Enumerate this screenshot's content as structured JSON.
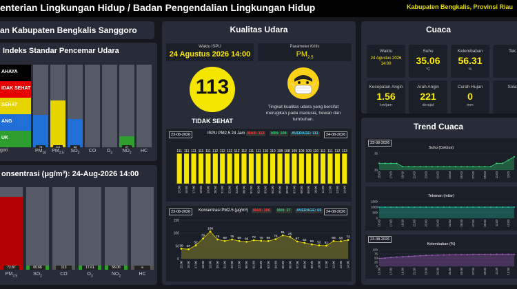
{
  "header": {
    "title": "enterian Lingkungan Hidup / Badan Pengendalian Lingkungan Hidup",
    "region": "Kabupaten Bengkalis, Provinsi Riau"
  },
  "station": {
    "title": "an Kabupaten Bengkalis Sanggoro"
  },
  "ispu_index": {
    "title": "Indeks Standar Pencemar Udara",
    "legend": [
      "AHAYA",
      "IDAK SEHAT",
      "SEHAT",
      "ANG",
      "UK"
    ],
    "legend_colors": [
      "#000000",
      "#e60000",
      "#e6d400",
      "#1f6fd6",
      "#2e9f2e"
    ],
    "category_label": "gori",
    "pollutants": [
      {
        "label": "PM",
        "sub": "10",
        "value": 78,
        "color": "#1f6fd6"
      },
      {
        "label": "PM",
        "sub": "2.5",
        "value": 113,
        "color": "#e6d400"
      },
      {
        "label": "SO",
        "sub": "2",
        "value": 68,
        "color": "#1f6fd6"
      },
      {
        "label": "CO",
        "sub": "",
        "value": null,
        "color": "#555"
      },
      {
        "label": "O",
        "sub": "3",
        "value": null,
        "color": "#555"
      },
      {
        "label": "NO",
        "sub": "2",
        "value": 27,
        "color": "#2e9f2e"
      },
      {
        "label": "HC",
        "sub": "",
        "value": null,
        "color": "#555"
      }
    ],
    "bar_tags": [
      "78",
      "113",
      "68",
      "",
      "",
      "27",
      ""
    ]
  },
  "concentration": {
    "title": "onsentrasi (μg/m³): 24-Aug-2026 14:00",
    "bars": [
      {
        "label": "PM",
        "sub": "2.5",
        "tag": "72.87",
        "fill": 0.88,
        "color": "#b30000"
      },
      {
        "label": "SO",
        "sub": "2",
        "tag": "60.66",
        "fill": 0.04,
        "color": "#2e9f2e"
      },
      {
        "label": "CO",
        "sub": "",
        "tag": "113",
        "fill": 0.04,
        "color": "#555"
      },
      {
        "label": "O",
        "sub": "3",
        "tag": "17.61",
        "fill": 0.04,
        "color": "#2e9f2e"
      },
      {
        "label": "NO",
        "sub": "2",
        "tag": "56.06",
        "fill": 0.04,
        "color": "#2e9f2e"
      },
      {
        "label": "HC",
        "sub": "",
        "tag": "∞",
        "fill": 0.04,
        "color": "#555"
      }
    ]
  },
  "air_quality": {
    "title": "Kualitas Udara",
    "waktu_label": "Waktu ISPU",
    "waktu_value": "24 Agustus 2026 14:00",
    "param_label": "Parameter Kritis",
    "param_value": "PM",
    "param_sub": "2.5",
    "ispu_value": "113",
    "status": "TIDAK SEHAT",
    "description": "Tingkat kualitas udara yang bersifat merugikan pada manusia, hewan dan tumbuhan."
  },
  "ispu_24h": {
    "date_start": "23-08-2026",
    "date_end": "24-08-2026",
    "title": "ISPU PM2.5 24 Jam",
    "max": "MAX: 113",
    "min": "MIN: 108",
    "avg": "AVERAGE: 111",
    "hours": [
      "15:00",
      "16:00",
      "17:00",
      "18:00",
      "19:00",
      "20:00",
      "21:00",
      "22:00",
      "23:00",
      "00:00",
      "01:00",
      "02:00",
      "03:00",
      "04:00",
      "05:00",
      "06:00",
      "07:00",
      "08:00",
      "09:00",
      "10:00",
      "11:00",
      "12:00",
      "13:00",
      "14:00"
    ],
    "values": [
      111,
      111,
      111,
      111,
      111,
      112,
      112,
      112,
      112,
      112,
      111,
      111,
      110,
      110,
      108,
      108,
      109,
      109,
      109,
      110,
      111,
      111,
      112,
      113
    ]
  },
  "chart_data": {
    "type": "area",
    "title": "Konsentrasi PM2.5 (μg/m³)",
    "date_start": "23-08-2026",
    "date_end": "24-08-2026",
    "max": "MAX: 106",
    "min": "MIN: 37",
    "avg": "AVERAGE: 69",
    "x": [
      "15:00",
      "16:00",
      "17:00",
      "18:00",
      "19:00",
      "20:00",
      "21:00",
      "22:00",
      "23:00",
      "00:00",
      "01:00",
      "02:00",
      "03:00",
      "04:00",
      "05:00",
      "06:00",
      "07:00",
      "08:00",
      "09:00",
      "10:00",
      "11:00",
      "12:00",
      "13:00",
      "14:00"
    ],
    "values": [
      39,
      37,
      52,
      79,
      106,
      75,
      69,
      75,
      69,
      66,
      72,
      70,
      69,
      76,
      91,
      85,
      67,
      62,
      56,
      52,
      51,
      69,
      68,
      73
    ],
    "ylim": [
      0,
      150
    ],
    "yticks": [
      "0",
      "50",
      "100",
      "150"
    ]
  },
  "weather": {
    "title": "Cuaca",
    "cells": [
      {
        "label": "Waktu",
        "value": "24 Agustus 2026 14:00",
        "unit": ""
      },
      {
        "label": "Suhu",
        "value": "35.06",
        "unit": "°C"
      },
      {
        "label": "Kelembaban",
        "value": "56.31",
        "unit": "%"
      },
      {
        "label": "Tek",
        "value": "",
        "unit": ""
      },
      {
        "label": "Kecepatan Angin",
        "value": "1.56",
        "unit": "km/jam"
      },
      {
        "label": "Arah Angin",
        "value": "221",
        "unit": "derajat"
      },
      {
        "label": "Curah Hujan",
        "value": "0",
        "unit": "mm"
      },
      {
        "label": "Sola",
        "value": "",
        "unit": ""
      }
    ]
  },
  "weather_trend": {
    "title": "Trend Cuaca",
    "charts": [
      {
        "date": "23-08-2026",
        "title": "Suhu (Celcius)",
        "color": "#2ecc71",
        "yticks": [
          "30",
          "35"
        ],
        "values": [
          32,
          32,
          32,
          32,
          31,
          31,
          31,
          31,
          31,
          31,
          31,
          31,
          31,
          31,
          31,
          31,
          31,
          31,
          31,
          31,
          32,
          32,
          33,
          34
        ]
      },
      {
        "date": "",
        "title": "Tekanan (milar)",
        "color": "#1abc9c",
        "yticks": [
          "0",
          "500",
          "1000",
          "1500"
        ],
        "values": [
          1000,
          1000,
          1000,
          1000,
          1000,
          1000,
          1000,
          1000,
          1000,
          1000,
          1000,
          1000,
          1000,
          1000,
          1000,
          1000,
          1000,
          1000,
          1000,
          1000,
          1000,
          1000,
          1000,
          1000
        ]
      },
      {
        "date": "23-08-2026",
        "title": "Kelembaban (%)",
        "color": "#9b59b6",
        "yticks": [
          "0",
          "25",
          "50",
          "75",
          "100"
        ],
        "values": [
          48,
          50,
          53,
          56,
          58,
          60,
          62,
          64,
          66,
          67,
          68,
          69,
          70,
          70,
          71,
          71,
          72,
          72,
          72,
          72,
          73,
          73,
          73,
          72
        ]
      }
    ],
    "hours": [
      "15:00",
      "17:00",
      "19:00",
      "21:00",
      "23:00",
      "01:00",
      "03:00",
      "05:00",
      "07:00",
      "09:00",
      "11:00",
      "13:00"
    ]
  }
}
